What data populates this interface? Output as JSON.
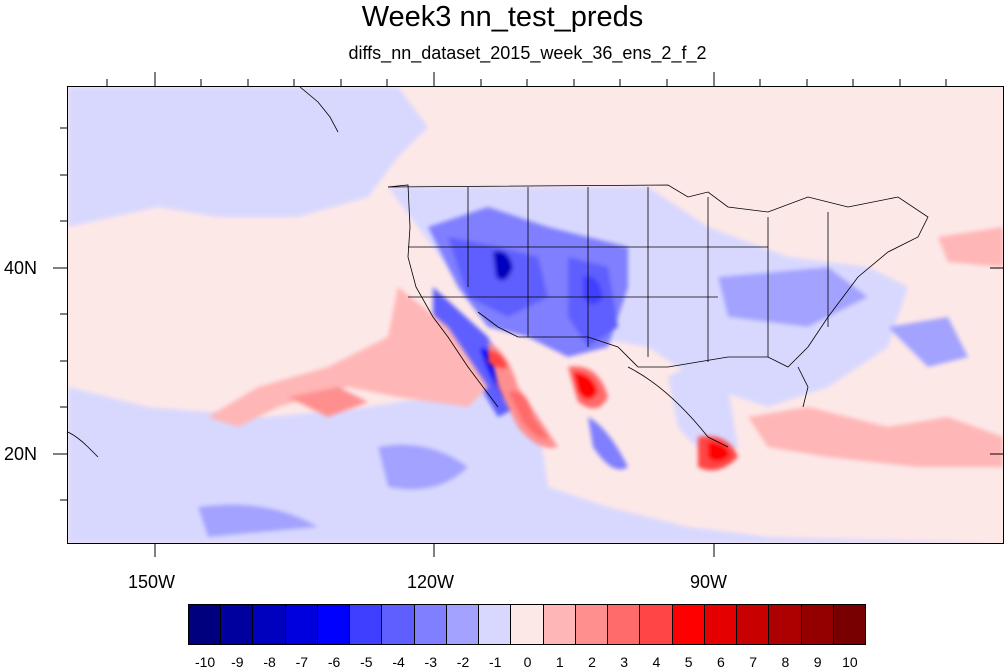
{
  "title": "Week3 nn_test_preds",
  "subtitle": "diffs_nn_dataset_2015_week_36_ens_2_f_2",
  "map": {
    "lon_labels": [
      "150W",
      "120W",
      "90W"
    ],
    "lat_labels": [
      "40N",
      "20N"
    ],
    "background_color": "#fde8e8"
  },
  "colorbar": {
    "labels": [
      "-10",
      "-9",
      "-8",
      "-7",
      "-6",
      "-5",
      "-4",
      "-3",
      "-2",
      "-1",
      "0",
      "1",
      "2",
      "3",
      "4",
      "5",
      "6",
      "7",
      "8",
      "9",
      "10"
    ],
    "colors": [
      "#00007f",
      "#00009f",
      "#0000bf",
      "#0000df",
      "#0000ff",
      "#3f3fff",
      "#5f5fff",
      "#7f7fff",
      "#a3a3ff",
      "#d8d8ff",
      "#fde8e8",
      "#ffb6b6",
      "#ff8f8f",
      "#ff6b6b",
      "#ff4545",
      "#ff0000",
      "#e40000",
      "#c80000",
      "#ad0000",
      "#940000",
      "#780000"
    ]
  }
}
